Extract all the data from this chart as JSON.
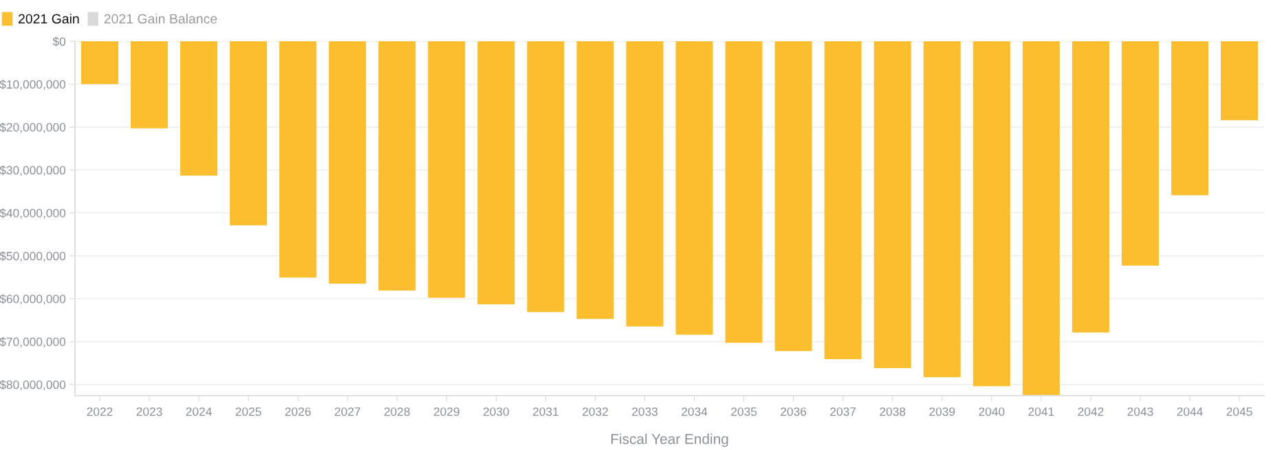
{
  "chart_data": {
    "type": "bar",
    "xlabel": "Fiscal Year Ending",
    "categories": [
      "2022",
      "2023",
      "2024",
      "2025",
      "2026",
      "2027",
      "2028",
      "2029",
      "2030",
      "2031",
      "2032",
      "2033",
      "2034",
      "2035",
      "2036",
      "2037",
      "2038",
      "2039",
      "2040",
      "2041",
      "2042",
      "2043",
      "2044",
      "2045"
    ],
    "series": [
      {
        "name": "2021 Gain",
        "color": "#fbbe2e",
        "values": [
          10000000,
          20300000,
          31300000,
          42900000,
          55100000,
          56500000,
          58100000,
          59800000,
          61300000,
          63100000,
          64700000,
          66500000,
          68400000,
          70300000,
          72200000,
          74100000,
          76200000,
          78300000,
          80400000,
          82500000,
          67900000,
          52300000,
          35900000,
          18400000
        ]
      },
      {
        "name": "2021 Gain Balance",
        "color": "#d9d9d9",
        "values": [
          null,
          null,
          null,
          null,
          null,
          null,
          null,
          null,
          null,
          null,
          null,
          null,
          null,
          null,
          null,
          null,
          null,
          null,
          null,
          null,
          null,
          null,
          null,
          null
        ]
      }
    ],
    "ylim": [
      82600000,
      0
    ],
    "yticks": [
      {
        "value": 0,
        "label": "$0"
      },
      {
        "value": 10000000,
        "label": "$10,000,000"
      },
      {
        "value": 20000000,
        "label": "$20,000,000"
      },
      {
        "value": 30000000,
        "label": "$30,000,000"
      },
      {
        "value": 40000000,
        "label": "$40,000,000"
      },
      {
        "value": 50000000,
        "label": "$50,000,000"
      },
      {
        "value": 60000000,
        "label": "$60,000,000"
      },
      {
        "value": 70000000,
        "label": "$70,000,000"
      },
      {
        "value": 80000000,
        "label": "$80,000,000"
      }
    ],
    "grid": "y",
    "legend": "top left"
  }
}
